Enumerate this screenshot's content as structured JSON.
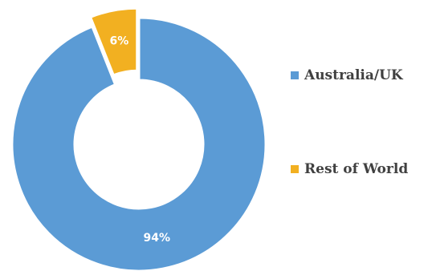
{
  "chart_data": {
    "type": "pie",
    "donut": true,
    "title": "",
    "legend_placement": "right",
    "slices": [
      {
        "label": "Australia/UK",
        "value": 94,
        "display": "94%",
        "color": "#5b9bd5",
        "exploded": false
      },
      {
        "label": "Rest of World",
        "value": 6,
        "display": "6%",
        "color": "#f2b021",
        "exploded": true
      }
    ]
  }
}
